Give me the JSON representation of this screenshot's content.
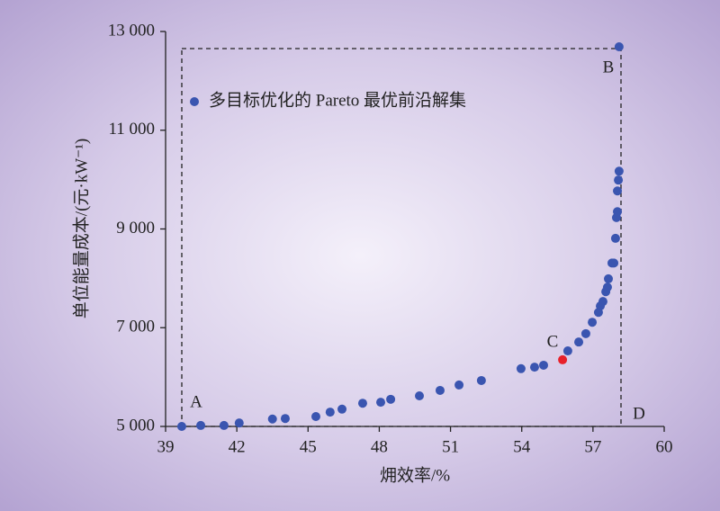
{
  "chart_data": {
    "type": "scatter",
    "xlabel": "㶲效率/%",
    "ylabel": "单位能量成本/(元·kW⁻¹)",
    "xlim": [
      39,
      60
    ],
    "xticks": [
      39,
      42,
      45,
      48,
      51,
      54,
      57,
      60
    ],
    "ylim": [
      5000,
      13000
    ],
    "yticks": [
      {
        "value": 5000,
        "label": "5 000"
      },
      {
        "value": 7000,
        "label": "7 000"
      },
      {
        "value": 9000,
        "label": "9 000"
      },
      {
        "value": 11000,
        "label": "11 000"
      },
      {
        "value": 13000,
        "label": "13 000"
      }
    ],
    "series": [
      {
        "name": "多目标优化的 Pareto 最优前沿解集",
        "color": "#3a55b0",
        "x": [
          39.68,
          40.48,
          41.46,
          42.1,
          43.5,
          44.04,
          45.33,
          45.93,
          46.43,
          47.3,
          48.06,
          48.48,
          49.69,
          50.56,
          51.36,
          52.3,
          53.97,
          54.54,
          54.92,
          55.94,
          56.4,
          56.7,
          56.97,
          57.23,
          57.31,
          57.42,
          57.54,
          57.61,
          57.65,
          57.8,
          57.88,
          57.95,
          57.99,
          58.03,
          58.03,
          58.07,
          58.1,
          58.1
        ],
        "values": [
          5000,
          5020,
          5020,
          5070,
          5150,
          5160,
          5200,
          5290,
          5350,
          5470,
          5490,
          5550,
          5620,
          5730,
          5840,
          5930,
          6170,
          6200,
          6240,
          6530,
          6710,
          6880,
          7110,
          7310,
          7440,
          7530,
          7730,
          7820,
          7990,
          8310,
          8310,
          8810,
          9230,
          9350,
          9770,
          9990,
          10170,
          12690
        ]
      }
    ],
    "highlight": {
      "x": 55.72,
      "y": 6350,
      "color": "#e8202a"
    },
    "annotations": [
      "A",
      "B",
      "C",
      "D"
    ]
  }
}
